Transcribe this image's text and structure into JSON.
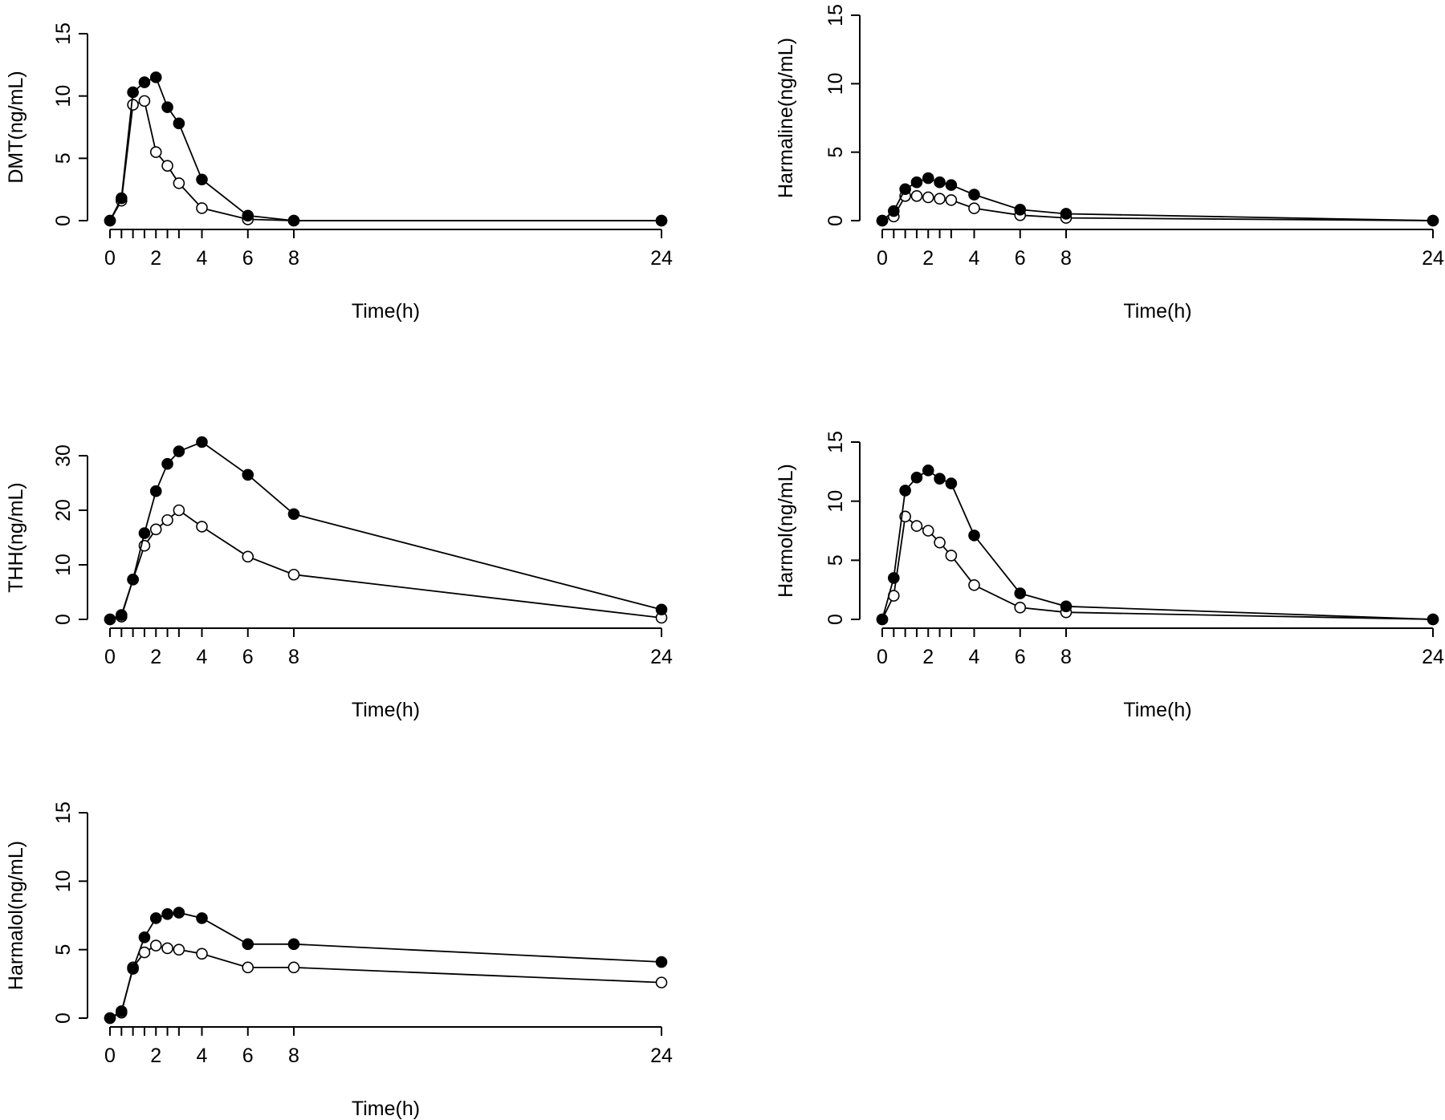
{
  "chart_data": [
    {
      "type": "line",
      "title": "",
      "xlabel": "Time(h)",
      "ylabel": "DMT(ng/mL)",
      "ylim": [
        0,
        15
      ],
      "yticks": [
        0,
        5,
        10,
        15
      ],
      "xtick_labels": [
        "0",
        "2",
        "4",
        "6",
        "8",
        "24"
      ],
      "x": [
        0,
        0.5,
        1,
        1.5,
        2,
        2.5,
        3,
        4,
        6,
        8,
        24
      ],
      "series": [
        {
          "name": "filled",
          "marker": "filled-circle",
          "values": [
            0,
            1.8,
            10.3,
            11.1,
            11.5,
            9.1,
            7.8,
            3.3,
            0.4,
            0,
            0
          ]
        },
        {
          "name": "open",
          "marker": "open-circle",
          "values": [
            0,
            1.6,
            9.3,
            9.6,
            5.5,
            4.4,
            3.0,
            1.0,
            0.1,
            0,
            0
          ]
        }
      ]
    },
    {
      "type": "line",
      "title": "",
      "xlabel": "Time(h)",
      "ylabel": "Harmaline(ng/mL)",
      "ylim": [
        0,
        15
      ],
      "yticks": [
        0,
        5,
        10,
        15
      ],
      "xtick_labels": [
        "0",
        "2",
        "4",
        "6",
        "8",
        "24"
      ],
      "x": [
        0,
        0.5,
        1,
        1.5,
        2,
        2.5,
        3,
        4,
        6,
        8,
        24
      ],
      "series": [
        {
          "name": "filled",
          "marker": "filled-circle",
          "values": [
            0,
            0.7,
            2.3,
            2.8,
            3.1,
            2.8,
            2.6,
            1.9,
            0.8,
            0.5,
            0
          ]
        },
        {
          "name": "open",
          "marker": "open-circle",
          "values": [
            0,
            0.3,
            1.8,
            1.8,
            1.7,
            1.6,
            1.5,
            0.9,
            0.4,
            0.2,
            0
          ]
        }
      ]
    },
    {
      "type": "line",
      "title": "",
      "xlabel": "Time(h)",
      "ylabel": "THH(ng/mL)",
      "ylim": [
        0,
        30
      ],
      "yticks": [
        0,
        10,
        20,
        30
      ],
      "xtick_labels": [
        "0",
        "2",
        "4",
        "6",
        "8",
        "24"
      ],
      "x": [
        0,
        0.5,
        1,
        1.5,
        2,
        2.5,
        3,
        4,
        6,
        8,
        24
      ],
      "series": [
        {
          "name": "filled",
          "marker": "filled-circle",
          "values": [
            0,
            0.8,
            7.3,
            15.8,
            23.5,
            28.5,
            30.8,
            32.5,
            26.5,
            19.3,
            1.8
          ]
        },
        {
          "name": "open",
          "marker": "open-circle",
          "values": [
            0,
            0.5,
            7.3,
            13.5,
            16.5,
            18.2,
            20.0,
            17.0,
            11.5,
            8.2,
            0.3
          ]
        }
      ]
    },
    {
      "type": "line",
      "title": "",
      "xlabel": "Time(h)",
      "ylabel": "Harmol(ng/mL)",
      "ylim": [
        0,
        15
      ],
      "yticks": [
        0,
        5,
        10,
        15
      ],
      "xtick_labels": [
        "0",
        "2",
        "4",
        "6",
        "8",
        "24"
      ],
      "x": [
        0,
        0.5,
        1,
        1.5,
        2,
        2.5,
        3,
        4,
        6,
        8,
        24
      ],
      "series": [
        {
          "name": "filled",
          "marker": "filled-circle",
          "values": [
            0,
            3.5,
            10.9,
            12.0,
            12.6,
            11.9,
            11.5,
            7.1,
            2.2,
            1.1,
            0
          ]
        },
        {
          "name": "open",
          "marker": "open-circle",
          "values": [
            0,
            2.0,
            8.7,
            7.9,
            7.5,
            6.5,
            5.4,
            2.9,
            1.0,
            0.6,
            0
          ]
        }
      ]
    },
    {
      "type": "line",
      "title": "",
      "xlabel": "Time(h)",
      "ylabel": "Harmalol(ng/mL)",
      "ylim": [
        0,
        15
      ],
      "yticks": [
        0,
        5,
        10,
        15
      ],
      "xtick_labels": [
        "0",
        "2",
        "4",
        "6",
        "8",
        "24"
      ],
      "x": [
        0,
        0.5,
        1,
        1.5,
        2,
        2.5,
        3,
        4,
        6,
        8,
        24
      ],
      "series": [
        {
          "name": "filled",
          "marker": "filled-circle",
          "values": [
            0,
            0.5,
            3.6,
            5.9,
            7.3,
            7.6,
            7.7,
            7.3,
            5.4,
            5.4,
            4.1
          ]
        },
        {
          "name": "open",
          "marker": "open-circle",
          "values": [
            0,
            0.4,
            3.7,
            4.8,
            5.3,
            5.1,
            5.0,
            4.7,
            3.7,
            3.7,
            2.6
          ]
        }
      ]
    }
  ]
}
